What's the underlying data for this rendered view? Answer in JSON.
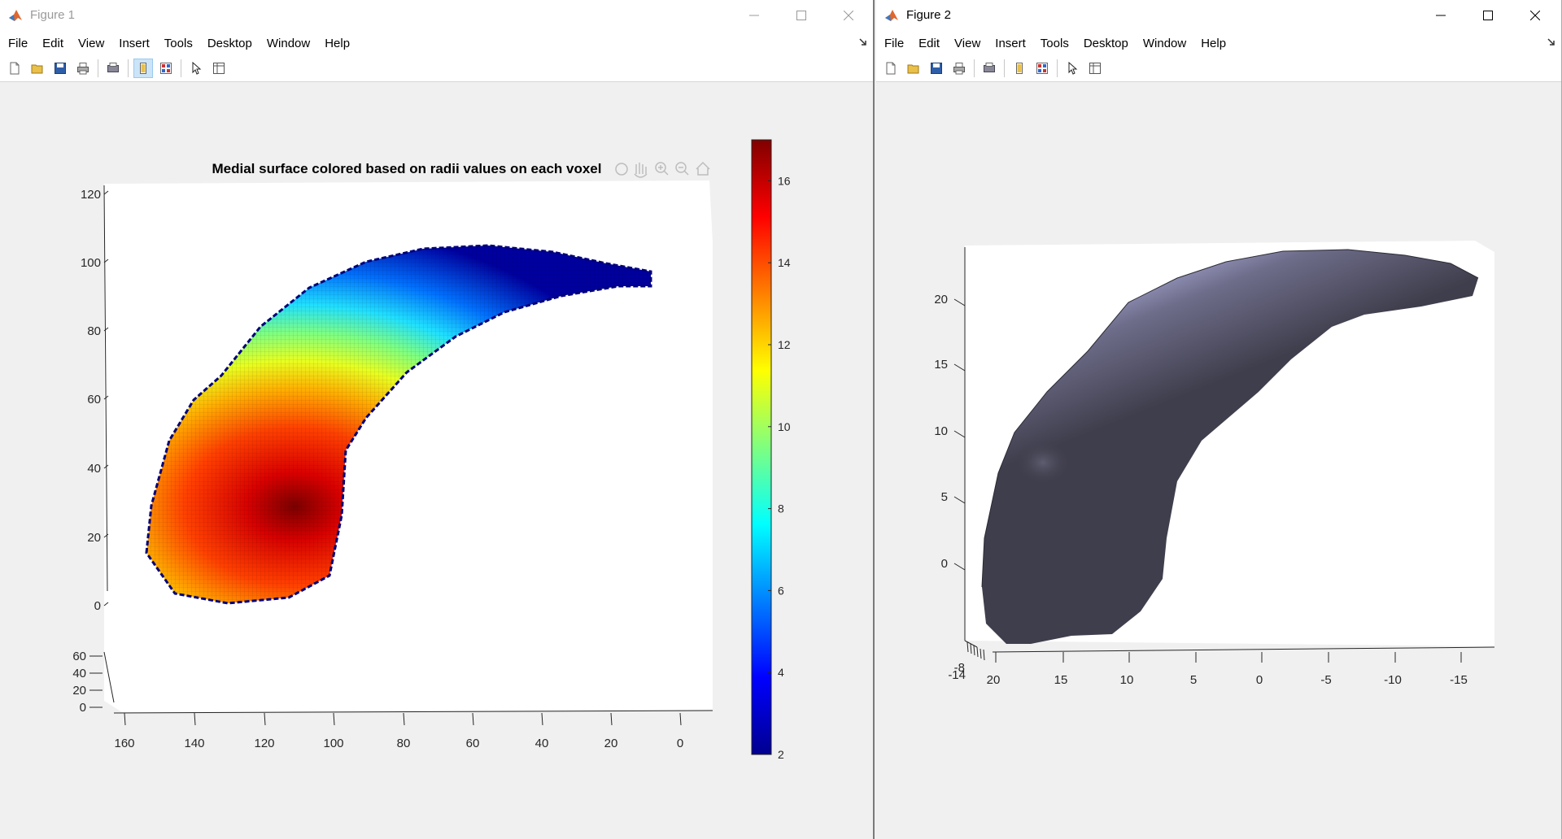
{
  "fig1": {
    "window_title": "Figure 1",
    "menu": [
      "File",
      "Edit",
      "View",
      "Insert",
      "Tools",
      "Desktop",
      "Window",
      "Help"
    ],
    "axes_title": "Medial surface colored based on radii values on each voxel",
    "yticks": [
      "120",
      "100",
      "80",
      "60",
      "40",
      "20",
      "0"
    ],
    "zticks": [
      "60",
      "40",
      "20",
      "0"
    ],
    "xticks": [
      "160",
      "140",
      "120",
      "100",
      "80",
      "60",
      "40",
      "20",
      "0"
    ],
    "colorbar_ticks": [
      "16",
      "14",
      "12",
      "10",
      "8",
      "6",
      "4",
      "2"
    ],
    "colormap": "jet",
    "toolbar_icons": [
      "new-figure-icon",
      "open-file-icon",
      "save-icon",
      "print-icon",
      "print-preview-icon",
      "dock-figure-icon",
      "property-editor-icon",
      "edit-plot-icon",
      "plot-browser-icon"
    ],
    "axes_toolbar_icons": [
      "brush-icon",
      "rotate-icon",
      "pan-icon",
      "zoom-in-icon",
      "zoom-out-icon",
      "home-icon"
    ]
  },
  "fig2": {
    "window_title": "Figure 2",
    "menu": [
      "File",
      "Edit",
      "View",
      "Insert",
      "Tools",
      "Desktop",
      "Window",
      "Help"
    ],
    "zticks": [
      "20",
      "15",
      "10",
      "5",
      "0"
    ],
    "xticks": [
      "20",
      "15",
      "10",
      "5",
      "0",
      "-5",
      "-10",
      "-15"
    ],
    "yticks": [
      "-8",
      "-14"
    ],
    "surface_color": "#3f3e4c",
    "highlight_color": "#a4a4d0",
    "toolbar_icons": [
      "new-figure-icon",
      "open-file-icon",
      "save-icon",
      "print-icon",
      "print-preview-icon",
      "dock-figure-icon",
      "property-editor-icon",
      "edit-plot-icon",
      "plot-browser-icon"
    ]
  }
}
